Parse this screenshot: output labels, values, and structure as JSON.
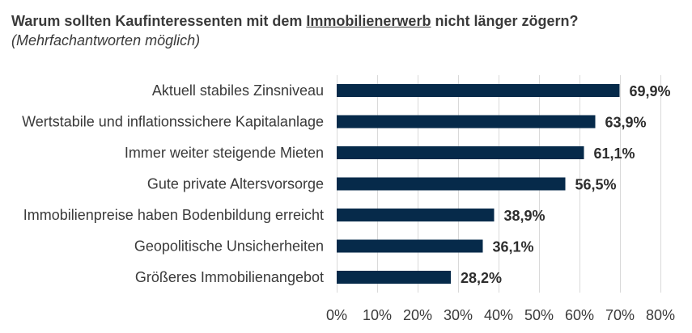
{
  "title": {
    "part1": "Warum sollten Kaufinteressenten mit dem ",
    "underlined": "Immobilienerwerb",
    "part2": " nicht länger zögern?",
    "subtitle": "(Mehrfachantworten möglich)"
  },
  "chart_data": {
    "type": "bar",
    "orientation": "horizontal",
    "categories": [
      "Aktuell stabiles Zinsniveau",
      "Wertstabile und inflationssichere Kapitalanlage",
      "Immer weiter steigende Mieten",
      "Gute private Altersvorsorge",
      "Immobilienpreise haben Bodenbildung erreicht",
      "Geopolitische Unsicherheiten",
      "Größeres Immobilienangebot"
    ],
    "values": [
      69.9,
      63.9,
      61.1,
      56.5,
      38.9,
      36.1,
      28.2
    ],
    "value_labels": [
      "69,9%",
      "63,9%",
      "61,1%",
      "56,5%",
      "38,9%",
      "36,1%",
      "28,2%"
    ],
    "xlim": [
      0,
      80
    ],
    "xticks": [
      0,
      10,
      20,
      30,
      40,
      50,
      60,
      70,
      80
    ],
    "xtick_labels": [
      "0%",
      "10%",
      "20%",
      "30%",
      "40%",
      "50%",
      "60%",
      "70%",
      "80%"
    ],
    "grid": true,
    "legend": "none",
    "bar_color": "#062a4a",
    "grid_color": "#d9d9d9"
  }
}
